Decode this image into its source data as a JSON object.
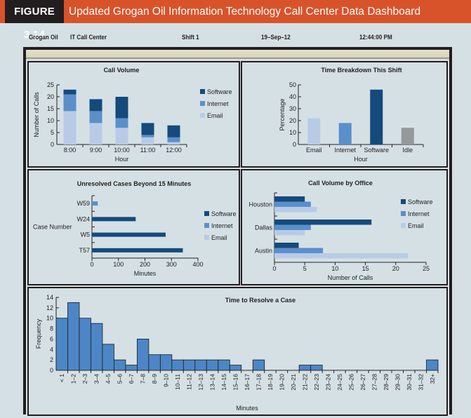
{
  "figure": {
    "number": "FIGURE 3.14",
    "title": "Updated Grogan Oil Information Technology Call Center Data Dashboard"
  },
  "infobar": {
    "company": "Grogan Oil",
    "department": "IT Call Center",
    "shift": "Shift 1",
    "date": "19–Sep–12",
    "time": "12:44:00 PM"
  },
  "colors": {
    "software": "#154a7c",
    "internet": "#5b8fcb",
    "email": "#b8cbe6",
    "idle": "#96989a",
    "hist": "#4d86c6"
  },
  "chart_data": [
    {
      "id": "call-volume",
      "type": "bar",
      "stacked": true,
      "title": "Call Volume",
      "xlabel": "Hour",
      "ylabel": "Number of Calls",
      "ylim": [
        0,
        25
      ],
      "yticks": [
        0,
        5,
        10,
        15,
        20,
        25
      ],
      "categories": [
        "8:00",
        "9:00",
        "10:00",
        "11:00",
        "12:00"
      ],
      "series": [
        {
          "name": "Email",
          "values": [
            14,
            9,
            7,
            3,
            1
          ]
        },
        {
          "name": "Internet",
          "values": [
            7,
            5,
            4,
            1,
            2
          ]
        },
        {
          "name": "Software",
          "values": [
            2,
            5,
            9,
            5,
            5
          ]
        }
      ],
      "legend": [
        "Software",
        "Internet",
        "Email"
      ],
      "legend_position": "right"
    },
    {
      "id": "time-breakdown",
      "type": "bar",
      "title": "Time Breakdown This Shift",
      "xlabel": "Hour",
      "ylabel": "Percentage",
      "ylim": [
        0,
        50
      ],
      "yticks": [
        0,
        10,
        20,
        30,
        40,
        50
      ],
      "categories": [
        "Email",
        "Internet",
        "Software",
        "Idle"
      ],
      "values": [
        22,
        18,
        46,
        14
      ]
    },
    {
      "id": "unresolved-cases",
      "type": "bar",
      "orientation": "horizontal",
      "title": "Unresolved Cases Beyond 15 Minutes",
      "xlabel": "Minutes",
      "ylabel": "Case Number",
      "xlim": [
        0,
        400
      ],
      "xticks": [
        0,
        100,
        200,
        300,
        400
      ],
      "categories": [
        "W59",
        "W24",
        "W5",
        "T57"
      ],
      "values": [
        22,
        165,
        278,
        343
      ],
      "category_type": [
        "Internet",
        "Software",
        "Software",
        "Software"
      ],
      "legend": [
        "Software",
        "Internet",
        "Email"
      ],
      "legend_position": "right"
    },
    {
      "id": "call-volume-by-office",
      "type": "bar",
      "orientation": "horizontal",
      "title": "Call Volume by Office",
      "xlabel": "Number of Calls",
      "ylabel": "",
      "xlim": [
        0,
        25
      ],
      "xticks": [
        0,
        5,
        10,
        15,
        20,
        25
      ],
      "categories": [
        "Houston",
        "Dallas",
        "Austin"
      ],
      "series": [
        {
          "name": "Software",
          "values": [
            5,
            16,
            4
          ]
        },
        {
          "name": "Internet",
          "values": [
            6,
            6,
            8
          ]
        },
        {
          "name": "Email",
          "values": [
            7,
            5,
            22
          ]
        }
      ],
      "legend": [
        "Software",
        "Internet",
        "Email"
      ],
      "legend_position": "right"
    },
    {
      "id": "time-to-resolve",
      "type": "bar",
      "histogram": true,
      "title": "Time to Resolve a Case",
      "xlabel": "Minutes",
      "ylabel": "Frequency",
      "ylim": [
        0,
        14
      ],
      "yticks": [
        0,
        2,
        4,
        6,
        8,
        10,
        12,
        14
      ],
      "categories": [
        "< 1",
        "1–2",
        "2–3",
        "3–4",
        "4–5",
        "5–6",
        "6–7",
        "7–8",
        "8–9",
        "9–10",
        "10–11",
        "11–12",
        "12–13",
        "13–14",
        "14–15",
        "15–16",
        "16–17",
        "17–18",
        "18–19",
        "19–20",
        "20–21",
        "21–22",
        "22–23",
        "23–24",
        "24–25",
        "25–26",
        "26–27",
        "27–28",
        "28–29",
        "29–30",
        "30–31",
        "31–32",
        "32+"
      ],
      "values": [
        10,
        13,
        10,
        9,
        5,
        2,
        1,
        6,
        3,
        3,
        2,
        2,
        2,
        2,
        2,
        1,
        0,
        2,
        0,
        0,
        0,
        1,
        1,
        0,
        0,
        0,
        0,
        0,
        0,
        0,
        0,
        0,
        2
      ]
    }
  ]
}
